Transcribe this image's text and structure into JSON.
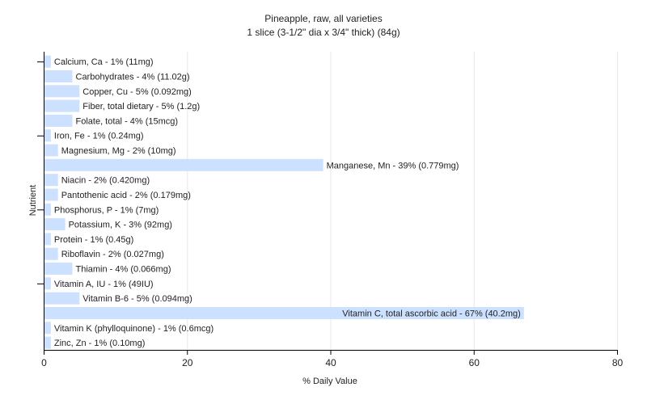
{
  "chart_data": {
    "type": "bar",
    "orientation": "horizontal",
    "title": "Pineapple, raw, all varieties",
    "subtitle": "1 slice (3-1/2\" dia x 3/4\" thick) (84g)",
    "xlabel": "% Daily Value",
    "ylabel": "Nutrient",
    "xlim": [
      0,
      80
    ],
    "xticks": [
      0,
      20,
      40,
      60,
      80
    ],
    "grid": true,
    "colors": {
      "bar": "#cce0ff",
      "grid": "#e8e8e8",
      "axis": "#000000",
      "text": "#222222"
    },
    "categories": [
      "Calcium, Ca",
      "Carbohydrates",
      "Copper, Cu",
      "Fiber, total dietary",
      "Folate, total",
      "Iron, Fe",
      "Magnesium, Mg",
      "Manganese, Mn",
      "Niacin",
      "Pantothenic acid",
      "Phosphorus, P",
      "Potassium, K",
      "Protein",
      "Riboflavin",
      "Thiamin",
      "Vitamin A, IU",
      "Vitamin B-6",
      "Vitamin C, total ascorbic acid",
      "Vitamin K (phylloquinone)",
      "Zinc, Zn"
    ],
    "values": [
      1,
      4,
      5,
      5,
      4,
      1,
      2,
      39,
      2,
      2,
      1,
      3,
      1,
      2,
      4,
      1,
      5,
      67,
      1,
      1
    ],
    "labels": [
      "Calcium, Ca - 1% (11mg)",
      "Carbohydrates - 4% (11.02g)",
      "Copper, Cu - 5% (0.092mg)",
      "Fiber, total dietary - 5% (1.2g)",
      "Folate, total - 4% (15mcg)",
      "Iron, Fe - 1% (0.24mg)",
      "Magnesium, Mg - 2% (10mg)",
      "Manganese, Mn - 39% (0.779mg)",
      "Niacin - 2% (0.420mg)",
      "Pantothenic acid - 2% (0.179mg)",
      "Phosphorus, P - 1% (7mg)",
      "Potassium, K - 3% (92mg)",
      "Protein - 1% (0.45g)",
      "Riboflavin - 2% (0.027mg)",
      "Thiamin - 4% (0.066mg)",
      "Vitamin A, IU - 1% (49IU)",
      "Vitamin B-6 - 5% (0.094mg)",
      "Vitamin C, total ascorbic acid - 67% (40.2mg)",
      "Vitamin K (phylloquinone) - 1% (0.6mcg)",
      "Zinc, Zn - 1% (0.10mg)"
    ]
  }
}
